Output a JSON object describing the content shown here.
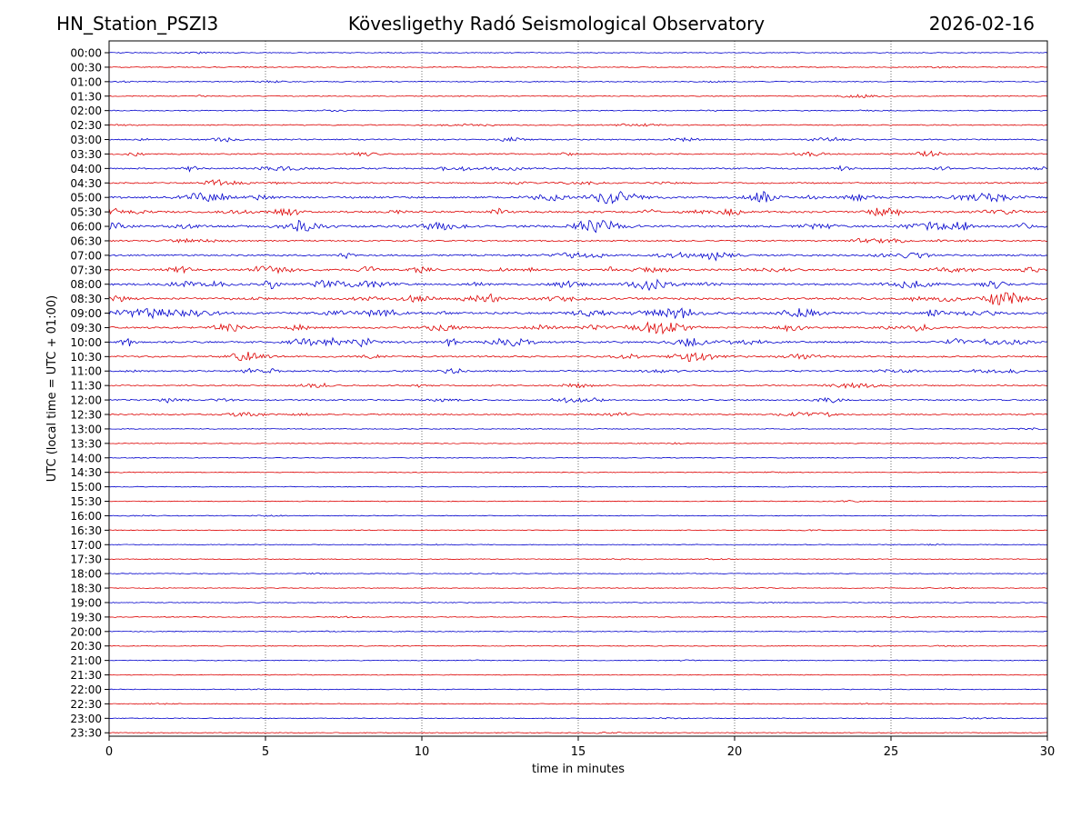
{
  "header": {
    "station": "HN_Station_PSZI3",
    "observatory": "Kövesligethy Radó Seismological Observatory",
    "date": "2026-02-16"
  },
  "chart_data": {
    "type": "line",
    "xlabel": "time in minutes",
    "ylabel": "UTC (local time = UTC + 01:00)",
    "xlim": [
      0,
      30
    ],
    "x_ticks": [
      0,
      5,
      10,
      15,
      20,
      25,
      30
    ],
    "grid": "vertical dotted at x ticks",
    "colors": {
      "even_hour": "#0000cc",
      "half_hour": "#dd0000"
    },
    "rows": [
      {
        "label": "00:00",
        "activity": 0.15
      },
      {
        "label": "00:30",
        "activity": 0.2
      },
      {
        "label": "01:00",
        "activity": 0.2
      },
      {
        "label": "01:30",
        "activity": 0.2
      },
      {
        "label": "02:00",
        "activity": 0.2
      },
      {
        "label": "02:30",
        "activity": 0.3
      },
      {
        "label": "03:00",
        "activity": 0.45
      },
      {
        "label": "03:30",
        "activity": 0.45
      },
      {
        "label": "04:00",
        "activity": 0.55
      },
      {
        "label": "04:30",
        "activity": 0.5
      },
      {
        "label": "05:00",
        "activity": 0.9
      },
      {
        "label": "05:30",
        "activity": 0.85
      },
      {
        "label": "06:00",
        "activity": 0.95
      },
      {
        "label": "06:30",
        "activity": 0.5
      },
      {
        "label": "07:00",
        "activity": 0.7
      },
      {
        "label": "07:30",
        "activity": 0.85
      },
      {
        "label": "08:00",
        "activity": 0.9
      },
      {
        "label": "08:30",
        "activity": 0.95
      },
      {
        "label": "09:00",
        "activity": 1.0
      },
      {
        "label": "09:30",
        "activity": 0.8
      },
      {
        "label": "10:00",
        "activity": 0.85
      },
      {
        "label": "10:30",
        "activity": 0.6
      },
      {
        "label": "11:00",
        "activity": 0.55
      },
      {
        "label": "11:30",
        "activity": 0.4
      },
      {
        "label": "12:00",
        "activity": 0.5
      },
      {
        "label": "12:30",
        "activity": 0.45
      },
      {
        "label": "13:00",
        "activity": 0.15
      },
      {
        "label": "13:30",
        "activity": 0.15
      },
      {
        "label": "14:00",
        "activity": 0.12
      },
      {
        "label": "14:30",
        "activity": 0.12
      },
      {
        "label": "15:00",
        "activity": 0.1
      },
      {
        "label": "15:30",
        "activity": 0.12
      },
      {
        "label": "16:00",
        "activity": 0.12
      },
      {
        "label": "16:30",
        "activity": 0.12
      },
      {
        "label": "17:00",
        "activity": 0.12
      },
      {
        "label": "17:30",
        "activity": 0.12
      },
      {
        "label": "18:00",
        "activity": 0.12
      },
      {
        "label": "18:30",
        "activity": 0.12
      },
      {
        "label": "19:00",
        "activity": 0.12
      },
      {
        "label": "19:30",
        "activity": 0.15
      },
      {
        "label": "20:00",
        "activity": 0.12
      },
      {
        "label": "20:30",
        "activity": 0.12
      },
      {
        "label": "21:00",
        "activity": 0.12
      },
      {
        "label": "21:30",
        "activity": 0.12
      },
      {
        "label": "22:00",
        "activity": 0.12
      },
      {
        "label": "22:30",
        "activity": 0.12
      },
      {
        "label": "23:00",
        "activity": 0.12
      },
      {
        "label": "23:30",
        "activity": 0.12
      }
    ]
  }
}
